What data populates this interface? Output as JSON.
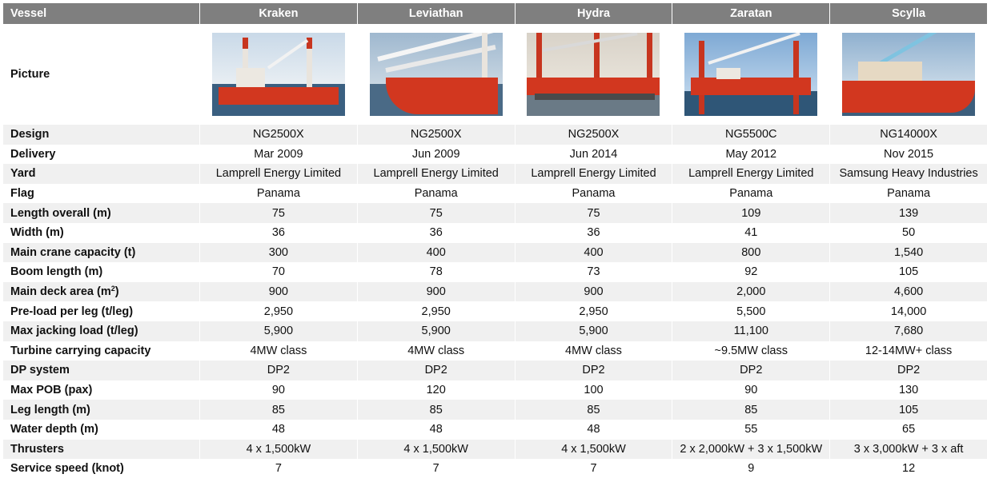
{
  "header": {
    "label": "Vessel",
    "vessels": [
      "Kraken",
      "Leviathan",
      "Hydra",
      "Zaratan",
      "Scylla"
    ]
  },
  "picture_row": {
    "label": "Picture",
    "images": [
      "vessel-photo-kraken",
      "vessel-photo-leviathan",
      "vessel-photo-hydra",
      "vessel-photo-zaratan",
      "vessel-photo-scylla"
    ]
  },
  "rows": [
    {
      "label": "Design",
      "values": [
        "NG2500X",
        "NG2500X",
        "NG2500X",
        "NG5500C",
        "NG14000X"
      ]
    },
    {
      "label": "Delivery",
      "values": [
        "Mar 2009",
        "Jun 2009",
        "Jun 2014",
        "May 2012",
        "Nov 2015"
      ]
    },
    {
      "label": "Yard",
      "values": [
        "Lamprell Energy Limited",
        "Lamprell Energy Limited",
        "Lamprell Energy Limited",
        "Lamprell Energy Limited",
        "Samsung Heavy Industries"
      ]
    },
    {
      "label": "Flag",
      "values": [
        "Panama",
        "Panama",
        "Panama",
        "Panama",
        "Panama"
      ]
    },
    {
      "label": "Length overall (m)",
      "values": [
        "75",
        "75",
        "75",
        "109",
        "139"
      ]
    },
    {
      "label": "Width (m)",
      "values": [
        "36",
        "36",
        "36",
        "41",
        "50"
      ]
    },
    {
      "label": "Main crane capacity (t)",
      "values": [
        "300",
        "400",
        "400",
        "800",
        "1,540"
      ]
    },
    {
      "label": "Boom length (m)",
      "values": [
        "70",
        "78",
        "73",
        "92",
        "105"
      ]
    },
    {
      "label": "Main deck area (m",
      "label_sup": "2",
      "label_after": ")",
      "values": [
        "900",
        "900",
        "900",
        "2,000",
        "4,600"
      ]
    },
    {
      "label": "Pre-load per leg (t/leg)",
      "values": [
        "2,950",
        "2,950",
        "2,950",
        "5,500",
        "14,000"
      ]
    },
    {
      "label": "Max jacking load (t/leg)",
      "values": [
        "5,900",
        "5,900",
        "5,900",
        "11,100",
        "7,680"
      ]
    },
    {
      "label": "Turbine carrying capacity",
      "values": [
        "4MW class",
        "4MW class",
        "4MW class",
        "~9.5MW class",
        "12-14MW+ class"
      ]
    },
    {
      "label": "DP system",
      "values": [
        "DP2",
        "DP2",
        "DP2",
        "DP2",
        "DP2"
      ]
    },
    {
      "label": "Max POB (pax)",
      "values": [
        "90",
        "120",
        "100",
        "90",
        "130"
      ]
    },
    {
      "label": "Leg length (m)",
      "values": [
        "85",
        "85",
        "85",
        "85",
        "105"
      ]
    },
    {
      "label": "Water depth (m)",
      "values": [
        "48",
        "48",
        "48",
        "55",
        "65"
      ]
    },
    {
      "label": "Thrusters",
      "values": [
        "4 x 1,500kW",
        "4 x 1,500kW",
        "4 x 1,500kW",
        "2 x 2,000kW + 3 x 1,500kW",
        "3 x 3,000kW + 3 x aft"
      ]
    },
    {
      "label": "Service speed (knot)",
      "values": [
        "7",
        "7",
        "7",
        "9",
        "12"
      ]
    }
  ],
  "colors": {
    "header_bg": "#7f7f7f",
    "zebra_bg": "#f0f0f0",
    "hull_red": "#d2371f"
  }
}
